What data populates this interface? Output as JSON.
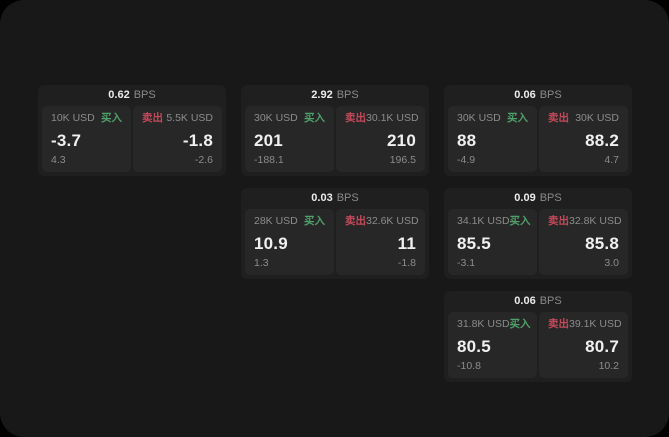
{
  "page": {
    "background": "#000000",
    "surface_background": "#181818"
  },
  "labels": {
    "buy": "买入",
    "sell": "卖出",
    "bps": "BPS"
  },
  "colors": {
    "buy": "#4fa06a",
    "sell": "#c4495a",
    "value_text": "#f0f0f0",
    "muted_text": "#8c8c8c",
    "card_bg": "#1f1f1f",
    "pane_bg": "#272727"
  },
  "cards": [
    {
      "row": 1,
      "col": 1,
      "bps_value": "0.62",
      "buy": {
        "amount": "10K USD",
        "value": "-3.7",
        "sub": "4.3"
      },
      "sell": {
        "amount": "5.5K USD",
        "value": "-1.8",
        "sub": "-2.6"
      }
    },
    {
      "row": 1,
      "col": 2,
      "bps_value": "2.92",
      "buy": {
        "amount": "30K USD",
        "value": "201",
        "sub": "-188.1"
      },
      "sell": {
        "amount": "30.1K USD",
        "value": "210",
        "sub": "196.5"
      }
    },
    {
      "row": 1,
      "col": 3,
      "bps_value": "0.06",
      "buy": {
        "amount": "30K USD",
        "value": "88",
        "sub": "-4.9"
      },
      "sell": {
        "amount": "30K USD",
        "value": "88.2",
        "sub": "4.7"
      }
    },
    {
      "row": 2,
      "col": 2,
      "bps_value": "0.03",
      "buy": {
        "amount": "28K USD",
        "value": "10.9",
        "sub": "1.3"
      },
      "sell": {
        "amount": "32.6K USD",
        "value": "11",
        "sub": "-1.8"
      }
    },
    {
      "row": 2,
      "col": 3,
      "bps_value": "0.09",
      "buy": {
        "amount": "34.1K USD",
        "value": "85.5",
        "sub": "-3.1"
      },
      "sell": {
        "amount": "32.8K USD",
        "value": "85.8",
        "sub": "3.0"
      }
    },
    {
      "row": 3,
      "col": 3,
      "bps_value": "0.06",
      "buy": {
        "amount": "31.8K USD",
        "value": "80.5",
        "sub": "-10.8"
      },
      "sell": {
        "amount": "39.1K USD",
        "value": "80.7",
        "sub": "10.2"
      }
    }
  ]
}
